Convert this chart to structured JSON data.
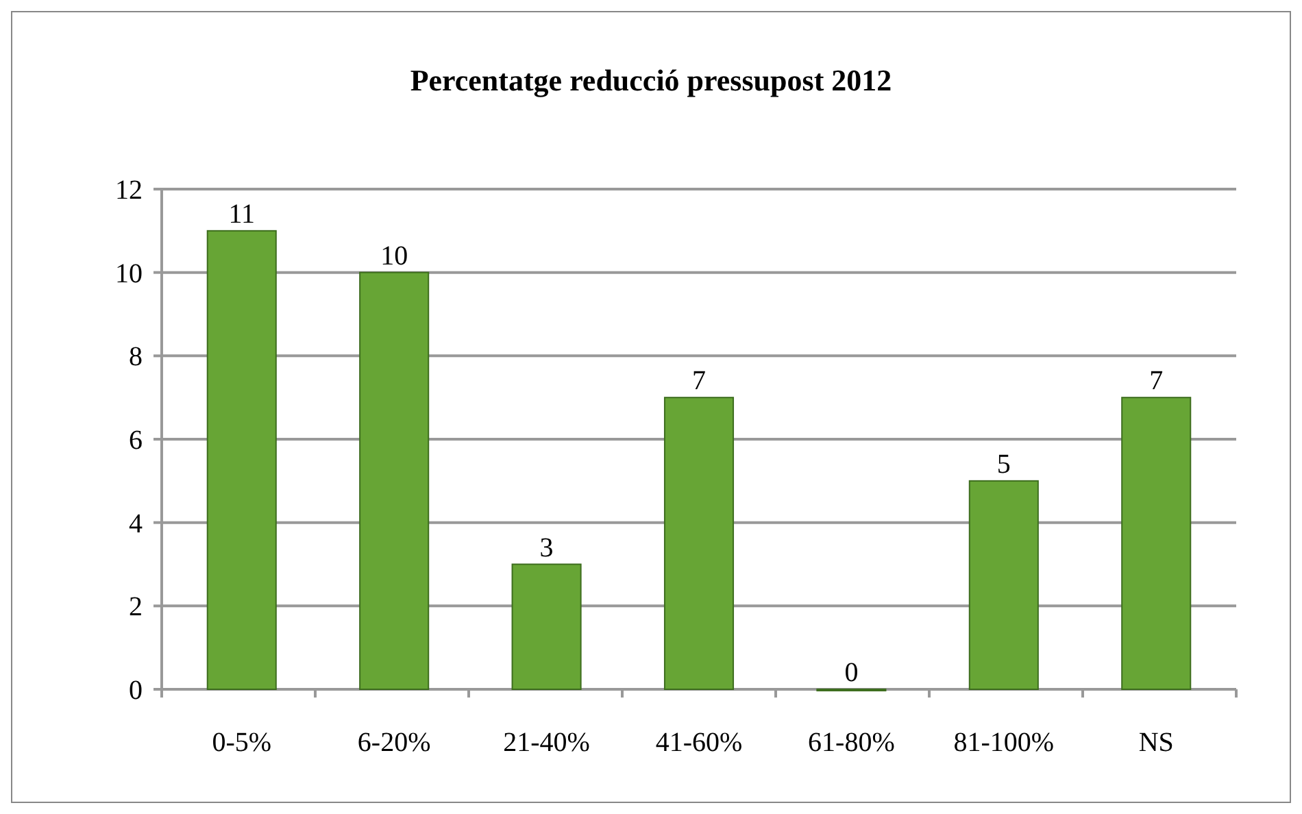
{
  "chart_data": {
    "type": "bar",
    "title": "Percentatge reducció pressupost 2012",
    "categories": [
      "0-5%",
      "6-20%",
      "21-40%",
      "41-60%",
      "61-80%",
      "81-100%",
      "NS"
    ],
    "values": [
      11,
      10,
      3,
      7,
      0,
      5,
      7
    ],
    "color": "#67a535",
    "ylim": [
      0,
      12
    ],
    "yticks": [
      0,
      2,
      4,
      6,
      8,
      10,
      12
    ],
    "grid": "y",
    "data_labels": true
  }
}
